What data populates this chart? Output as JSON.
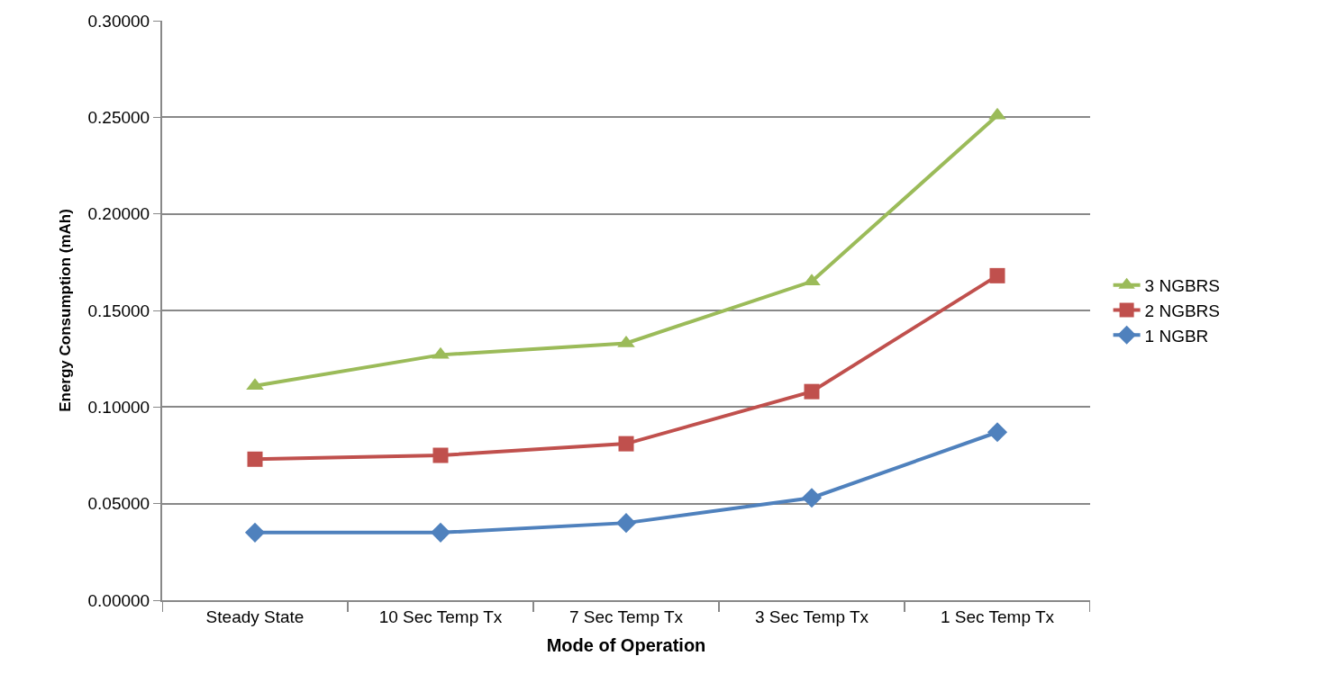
{
  "chart_data": {
    "type": "line",
    "xlabel": "Mode of Operation",
    "ylabel": "Energy Consumption (mAh)",
    "categories": [
      "Steady State",
      "10 Sec Temp Tx",
      "7 Sec Temp Tx",
      "3 Sec Temp Tx",
      "1 Sec Temp Tx"
    ],
    "series": [
      {
        "name": "3 NGBRS",
        "color": "#9bbb59",
        "marker": "triangle",
        "values": [
          0.111,
          0.127,
          0.133,
          0.165,
          0.251
        ]
      },
      {
        "name": "2 NGBRS",
        "color": "#c0504d",
        "marker": "square",
        "values": [
          0.073,
          0.075,
          0.081,
          0.108,
          0.168
        ]
      },
      {
        "name": "1 NGBR",
        "color": "#4f81bd",
        "marker": "diamond",
        "values": [
          0.035,
          0.035,
          0.04,
          0.053,
          0.087
        ]
      }
    ],
    "ylim": [
      0,
      0.3
    ],
    "yticks": [
      {
        "value": 0,
        "label": "0.00000"
      },
      {
        "value": 0.05,
        "label": "0.05000"
      },
      {
        "value": 0.1,
        "label": "0.10000"
      },
      {
        "value": 0.15,
        "label": "0.15000"
      },
      {
        "value": 0.2,
        "label": "0.20000"
      },
      {
        "value": 0.25,
        "label": "0.25000"
      },
      {
        "value": 0.3,
        "label": "0.30000"
      }
    ],
    "grid": "y",
    "legend": "right",
    "line_style": "solid"
  }
}
